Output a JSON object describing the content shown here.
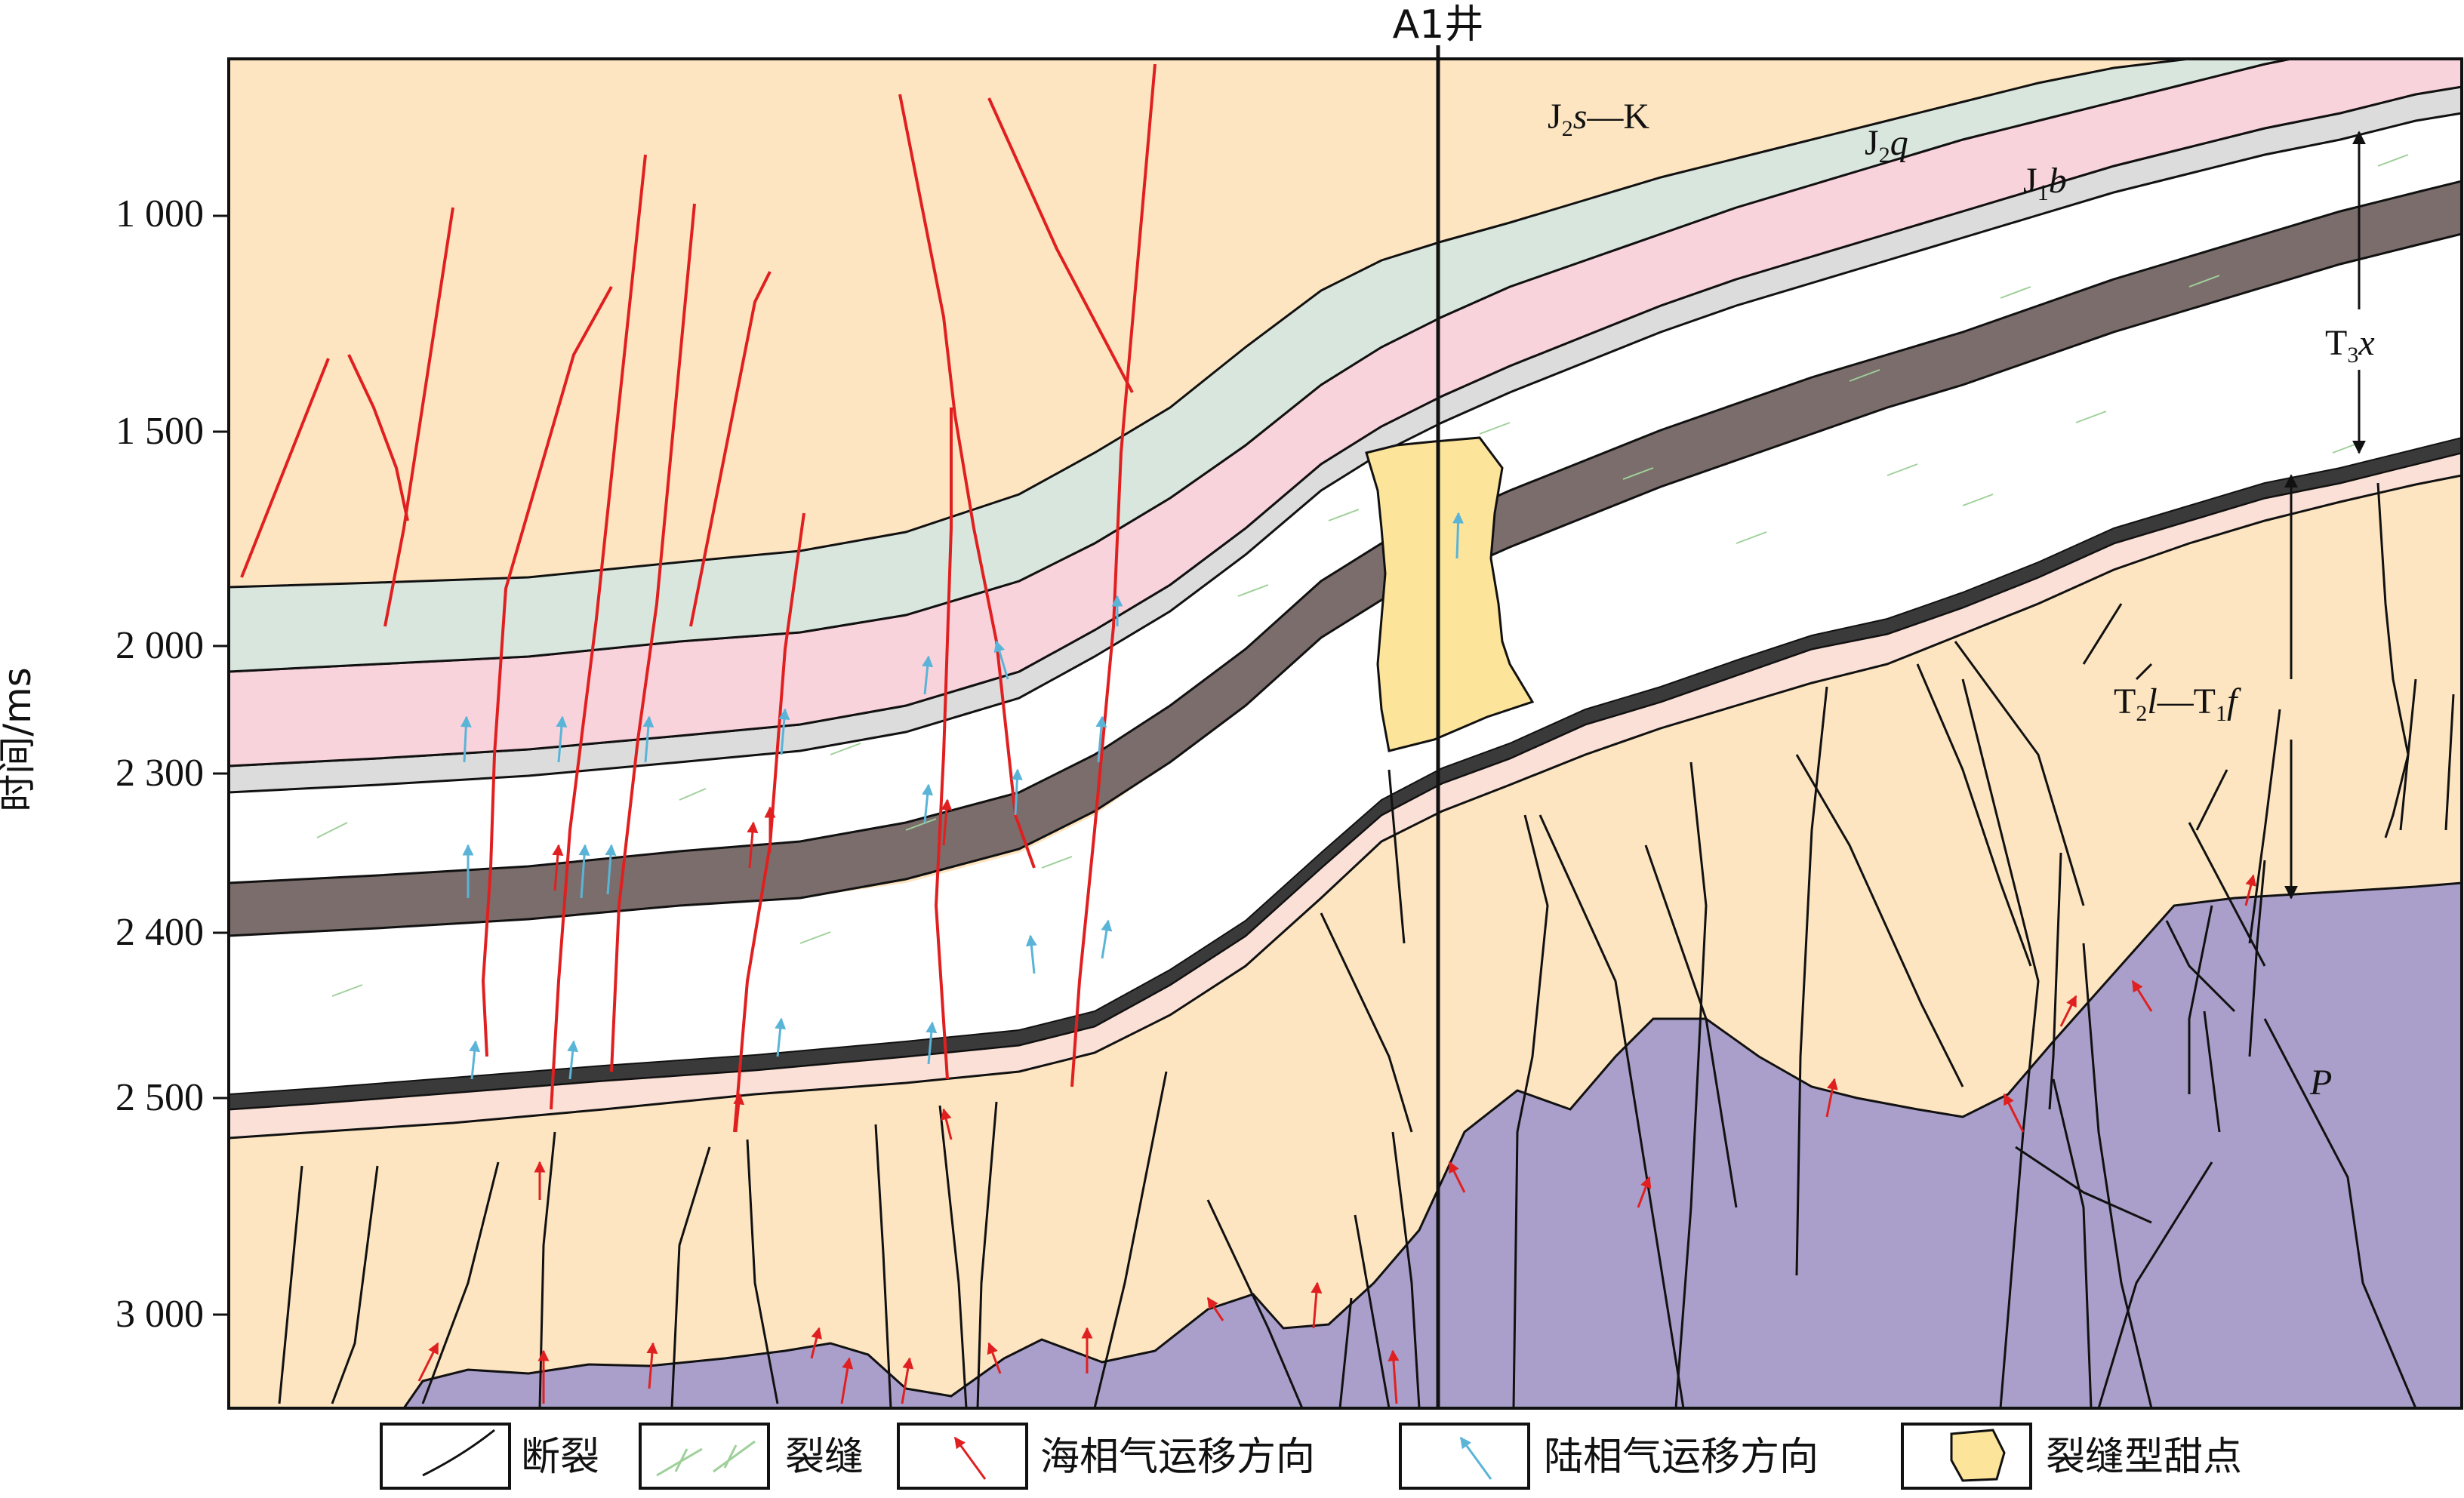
{
  "well": {
    "label": "A1井"
  },
  "y_axis": {
    "title": "时间/ms",
    "ticks": [
      "1 000",
      "1 500",
      "2 000",
      "2 300",
      "2 400",
      "2 500",
      "3 000"
    ]
  },
  "formations": {
    "j2s_k": {
      "base": "J",
      "sub": "2",
      "italic": "s",
      "tail": "—K"
    },
    "j2q": {
      "base": "J",
      "sub": "2",
      "italic": "q",
      "tail": ""
    },
    "j1b": {
      "base": "J",
      "sub": "1",
      "italic": "b",
      "tail": ""
    },
    "t3x": {
      "base": "T",
      "sub": "3",
      "italic": "x",
      "tail": ""
    },
    "t2l_t1f": {
      "base": "T",
      "sub": "2",
      "italic": "l",
      "mid": "—T",
      "sub2": "1",
      "italic2": "f"
    },
    "p": {
      "italic": "P"
    }
  },
  "legend": {
    "items": [
      {
        "label": "断裂",
        "icon": "fault-icon"
      },
      {
        "label": "裂缝",
        "icon": "fracture-icon"
      },
      {
        "label": "海相气运移方向",
        "icon": "marine-gas-arrow-icon"
      },
      {
        "label": "陆相气运移方向",
        "icon": "continental-gas-arrow-icon"
      },
      {
        "label": "裂缝型甜点",
        "icon": "sweet-spot-icon"
      }
    ]
  },
  "colors": {
    "j2s_k": "#ffffff",
    "j2q": "#d9e6dd",
    "j1b": "#f9d3dc",
    "thin_grey": "#dcdcdc",
    "t3x": "#ffffff",
    "coal": "#7a6d6b",
    "t_upper_pink": "#fae0d6",
    "t2l_t1f": "#fde5c1",
    "permian": "#a99fca",
    "sweet_spot": "#fce49a",
    "fault_red": "#e02020",
    "fault_black": "#111111",
    "arrow_red": "#e02020",
    "arrow_blue": "#5ab4d8",
    "fracture_green": "#9fd09a"
  }
}
